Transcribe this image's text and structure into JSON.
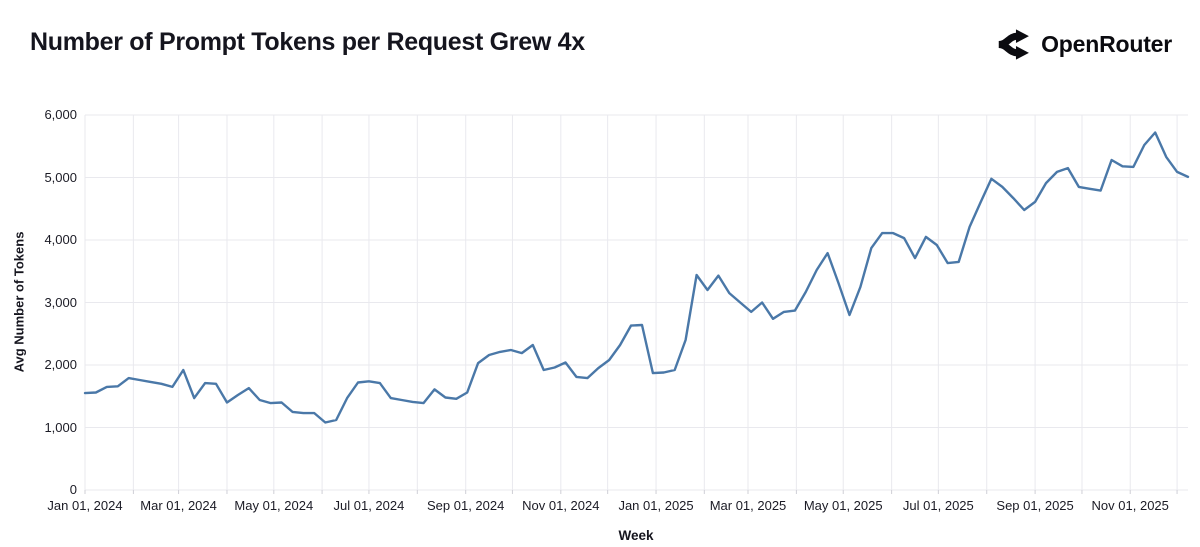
{
  "header": {
    "title": "Number of Prompt Tokens per Request Grew 4x",
    "brand_name": "OpenRouter"
  },
  "colors": {
    "line": "#4a78a8",
    "gridline": "#e9e9ee",
    "tick_mark": "#cfcfd6",
    "text_dark": "#15151e",
    "background": "#ffffff",
    "brand_black": "#0b0b10"
  },
  "chart_data": {
    "type": "line",
    "title": "Number of Prompt Tokens per Request Grew 4x",
    "xlabel": "Week",
    "ylabel": "Avg Number of Tokens",
    "ylim": [
      0,
      6000
    ],
    "grid": "on",
    "legend": "none",
    "x_unit": "weekly data points starting Jan 01, 2024",
    "y_ticks": [
      {
        "value": 0,
        "label": "0"
      },
      {
        "value": 1000,
        "label": "1,000"
      },
      {
        "value": 2000,
        "label": "2,000"
      },
      {
        "value": 3000,
        "label": "3,000"
      },
      {
        "value": 4000,
        "label": "4,000"
      },
      {
        "value": 5000,
        "label": "5,000"
      },
      {
        "value": 6000,
        "label": "6,000"
      }
    ],
    "x_ticks": [
      {
        "offset": 0.0,
        "label": "Jan 01, 2024"
      },
      {
        "offset": 8.57,
        "label": "Mar 01, 2024"
      },
      {
        "offset": 17.29,
        "label": "May 01, 2024"
      },
      {
        "offset": 26.0,
        "label": "Jul 01, 2024"
      },
      {
        "offset": 34.86,
        "label": "Sep 01, 2024"
      },
      {
        "offset": 43.57,
        "label": "Nov 01, 2024"
      },
      {
        "offset": 52.29,
        "label": "Jan 01, 2025"
      },
      {
        "offset": 60.71,
        "label": "Mar 01, 2025"
      },
      {
        "offset": 69.43,
        "label": "May 01, 2025"
      },
      {
        "offset": 78.14,
        "label": "Jul 01, 2025"
      },
      {
        "offset": 87.0,
        "label": "Sep 01, 2025"
      },
      {
        "offset": 95.71,
        "label": "Nov 01, 2025"
      }
    ],
    "x_minor_gridline_offsets": [
      4.43,
      13.0,
      21.71,
      30.43,
      39.14,
      47.86,
      56.71,
      65.14,
      73.86,
      82.57,
      91.29,
      100.0
    ],
    "series": [
      {
        "color": "#4a78a8",
        "values": [
          1550,
          1560,
          1650,
          1660,
          1790,
          1760,
          1730,
          1700,
          1650,
          1920,
          1470,
          1710,
          1700,
          1400,
          1520,
          1630,
          1440,
          1390,
          1400,
          1250,
          1230,
          1230,
          1080,
          1120,
          1470,
          1720,
          1740,
          1710,
          1470,
          1440,
          1410,
          1390,
          1610,
          1480,
          1460,
          1560,
          2030,
          2160,
          2210,
          2240,
          2190,
          2320,
          1920,
          1960,
          2040,
          1810,
          1790,
          1950,
          2080,
          2320,
          2630,
          2640,
          1870,
          1880,
          1920,
          2400,
          3440,
          3200,
          3430,
          3150,
          3000,
          2850,
          3000,
          2740,
          2850,
          2870,
          3170,
          3520,
          3790,
          3310,
          2800,
          3250,
          3870,
          4110,
          4110,
          4030,
          3710,
          4050,
          3920,
          3630,
          3650,
          4210,
          4600,
          4980,
          4850,
          4670,
          4480,
          4610,
          4910,
          5090,
          5150,
          4850,
          4820,
          4790,
          5280,
          5180,
          5170,
          5520,
          5720,
          5330,
          5090,
          5010
        ]
      }
    ]
  }
}
